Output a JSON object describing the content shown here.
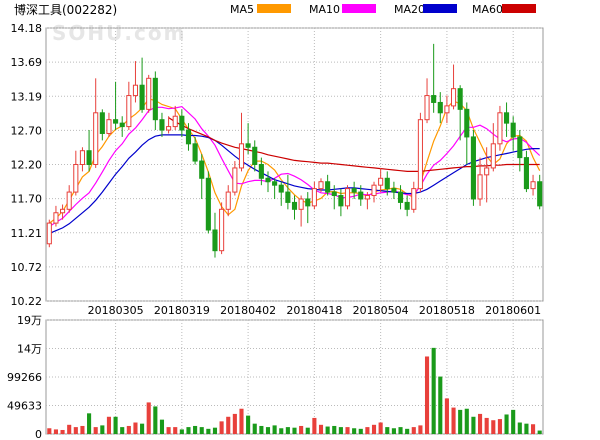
{
  "chart_data": {
    "type": "candlestick",
    "title": "博深工具(002282)",
    "watermark": "SOHU.com",
    "legend": [
      {
        "name": "MA5",
        "color": "#ff9900"
      },
      {
        "name": "MA10",
        "color": "#ff00ff"
      },
      {
        "name": "MA20",
        "color": "#0000cc"
      },
      {
        "name": "MA60",
        "color": "#cc0000"
      }
    ],
    "colors": {
      "up": "#e8403b",
      "down": "#1a9a1a",
      "grid": "#bbbbbb"
    },
    "price_axis": {
      "ticks": [
        "14.18",
        "13.69",
        "13.19",
        "12.70",
        "12.20",
        "11.70",
        "11.21",
        "10.72",
        "10.22"
      ],
      "ylim": [
        10.22,
        14.18
      ]
    },
    "volume_axis": {
      "ticks": [
        "19万",
        "14万",
        "99266",
        "49633",
        "0"
      ],
      "ylim": [
        0,
        198532
      ]
    },
    "date_labels": [
      {
        "label": "20180305",
        "index": 10
      },
      {
        "label": "20180319",
        "index": 20
      },
      {
        "label": "20180402",
        "index": 30
      },
      {
        "label": "20180418",
        "index": 40
      },
      {
        "label": "20180504",
        "index": 50
      },
      {
        "label": "20180518",
        "index": 60
      },
      {
        "label": "20180601",
        "index": 70
      }
    ],
    "candles": [
      [
        11.05,
        11.35,
        11.4,
        11.0
      ],
      [
        11.35,
        11.5,
        11.6,
        11.3
      ],
      [
        11.5,
        11.55,
        11.62,
        11.4
      ],
      [
        11.55,
        11.8,
        11.9,
        11.5
      ],
      [
        11.8,
        12.2,
        12.4,
        11.75
      ],
      [
        12.2,
        12.4,
        12.45,
        12.1
      ],
      [
        12.4,
        12.2,
        12.7,
        12.1
      ],
      [
        12.2,
        12.95,
        13.45,
        12.15
      ],
      [
        12.95,
        12.65,
        13.0,
        12.55
      ],
      [
        12.65,
        12.85,
        12.95,
        12.6
      ],
      [
        12.85,
        12.8,
        13.4,
        12.7
      ],
      [
        12.8,
        12.75,
        12.9,
        12.6
      ],
      [
        12.75,
        13.2,
        13.4,
        12.7
      ],
      [
        13.2,
        13.35,
        13.7,
        13.1
      ],
      [
        13.35,
        13.0,
        13.75,
        12.95
      ],
      [
        13.0,
        13.45,
        13.5,
        12.95
      ],
      [
        13.45,
        12.85,
        13.55,
        12.7
      ],
      [
        12.85,
        12.7,
        12.95,
        12.6
      ],
      [
        12.7,
        12.75,
        12.9,
        12.65
      ],
      [
        12.75,
        12.9,
        13.05,
        12.7
      ],
      [
        12.9,
        12.7,
        13.0,
        12.6
      ],
      [
        12.7,
        12.5,
        12.8,
        12.4
      ],
      [
        12.5,
        12.25,
        12.6,
        12.2
      ],
      [
        12.25,
        12.0,
        12.35,
        11.7
      ],
      [
        12.0,
        11.25,
        12.1,
        11.2
      ],
      [
        11.25,
        10.95,
        11.5,
        10.85
      ],
      [
        10.95,
        11.55,
        11.65,
        10.9
      ],
      [
        11.55,
        11.8,
        11.9,
        11.45
      ],
      [
        11.8,
        12.15,
        12.25,
        11.75
      ],
      [
        12.15,
        12.5,
        12.95,
        12.1
      ],
      [
        12.5,
        12.45,
        12.8,
        12.35
      ],
      [
        12.45,
        12.2,
        12.55,
        12.1
      ],
      [
        12.2,
        12.0,
        12.3,
        11.9
      ],
      [
        12.0,
        11.95,
        12.1,
        11.8
      ],
      [
        11.95,
        11.9,
        12.0,
        11.7
      ],
      [
        11.9,
        11.8,
        11.95,
        11.6
      ],
      [
        11.8,
        11.65,
        12.05,
        11.55
      ],
      [
        11.65,
        11.55,
        11.75,
        11.4
      ],
      [
        11.55,
        11.7,
        11.75,
        11.3
      ],
      [
        11.7,
        11.6,
        11.8,
        11.35
      ],
      [
        11.6,
        11.85,
        11.95,
        11.55
      ],
      [
        11.85,
        11.95,
        12.0,
        11.8
      ],
      [
        11.95,
        11.8,
        12.05,
        11.75
      ],
      [
        11.8,
        11.75,
        11.9,
        11.55
      ],
      [
        11.75,
        11.6,
        11.85,
        11.45
      ],
      [
        11.6,
        11.85,
        11.9,
        11.55
      ],
      [
        11.85,
        11.8,
        11.95,
        11.7
      ],
      [
        11.8,
        11.7,
        11.9,
        11.6
      ],
      [
        11.7,
        11.75,
        11.8,
        11.55
      ],
      [
        11.75,
        11.9,
        11.95,
        11.65
      ],
      [
        11.9,
        12.0,
        12.15,
        11.8
      ],
      [
        12.0,
        11.85,
        12.1,
        11.75
      ],
      [
        11.85,
        11.8,
        11.95,
        11.7
      ],
      [
        11.8,
        11.65,
        11.9,
        11.55
      ],
      [
        11.65,
        11.55,
        11.75,
        11.45
      ],
      [
        11.55,
        11.85,
        11.95,
        11.5
      ],
      [
        11.85,
        12.85,
        12.95,
        11.8
      ],
      [
        12.85,
        13.2,
        13.45,
        12.8
      ],
      [
        13.2,
        13.1,
        13.95,
        12.95
      ],
      [
        13.1,
        12.95,
        13.25,
        12.8
      ],
      [
        12.95,
        13.05,
        13.2,
        12.8
      ],
      [
        13.05,
        13.3,
        13.65,
        13.0
      ],
      [
        13.3,
        13.0,
        13.35,
        12.55
      ],
      [
        13.0,
        12.6,
        13.1,
        12.2
      ],
      [
        12.6,
        11.7,
        12.7,
        11.6
      ],
      [
        11.7,
        12.05,
        12.3,
        11.6
      ],
      [
        12.05,
        12.15,
        12.45,
        11.65
      ],
      [
        12.15,
        12.5,
        12.8,
        12.1
      ],
      [
        12.5,
        12.95,
        13.05,
        12.4
      ],
      [
        12.95,
        12.8,
        13.1,
        12.6
      ],
      [
        12.8,
        12.6,
        12.9,
        12.4
      ],
      [
        12.6,
        12.3,
        12.7,
        12.1
      ],
      [
        12.3,
        11.85,
        12.4,
        11.8
      ],
      [
        11.85,
        11.95,
        12.05,
        11.75
      ],
      [
        11.95,
        11.6,
        12.05,
        11.55
      ]
    ],
    "ma5": [
      11.35,
      11.42,
      11.52,
      11.68,
      11.85,
      12.02,
      12.1,
      12.34,
      12.46,
      12.61,
      12.71,
      12.76,
      12.86,
      12.93,
      13.02,
      13.15,
      13.13,
      13.07,
      13.04,
      13.01,
      12.86,
      12.71,
      12.58,
      12.35,
      12.09,
      11.79,
      11.59,
      11.47,
      11.55,
      11.89,
      12.11,
      12.25,
      12.25,
      12.2,
      12.12,
      11.98,
      11.86,
      11.76,
      11.68,
      11.64,
      11.67,
      11.71,
      11.8,
      11.81,
      11.78,
      11.79,
      11.79,
      11.78,
      11.74,
      11.8,
      11.83,
      11.84,
      11.86,
      11.84,
      11.77,
      11.72,
      11.93,
      12.24,
      12.54,
      12.76,
      13.02,
      13.12,
      13.08,
      12.98,
      12.72,
      12.52,
      12.32,
      12.2,
      12.28,
      12.5,
      12.61,
      12.62,
      12.54,
      12.3,
      12.11
    ],
    "ma10": [
      11.3,
      11.36,
      11.42,
      11.52,
      11.62,
      11.71,
      11.79,
      11.93,
      12.09,
      12.26,
      12.4,
      12.5,
      12.64,
      12.73,
      12.85,
      12.98,
      13.03,
      13.03,
      13.01,
      13.02,
      13.04,
      12.95,
      12.86,
      12.72,
      12.61,
      12.48,
      12.29,
      12.11,
      11.93,
      11.92,
      11.95,
      11.97,
      11.97,
      11.95,
      12.0,
      12.06,
      12.07,
      12.03,
      11.98,
      11.91,
      11.83,
      11.79,
      11.78,
      11.76,
      11.72,
      11.72,
      11.74,
      11.77,
      11.76,
      11.77,
      11.79,
      11.8,
      11.82,
      11.79,
      11.76,
      11.76,
      11.89,
      12.06,
      12.19,
      12.26,
      12.36,
      12.47,
      12.61,
      12.74,
      12.74,
      12.77,
      12.72,
      12.64,
      12.57,
      12.53,
      12.57,
      12.58,
      12.52,
      12.42,
      12.33
    ],
    "ma20": [
      11.2,
      11.24,
      11.28,
      11.34,
      11.42,
      11.5,
      11.58,
      11.68,
      11.8,
      11.93,
      12.06,
      12.17,
      12.29,
      12.38,
      12.48,
      12.56,
      12.61,
      12.63,
      12.63,
      12.63,
      12.63,
      12.62,
      12.62,
      12.61,
      12.59,
      12.55,
      12.48,
      12.4,
      12.32,
      12.25,
      12.19,
      12.13,
      12.08,
      12.03,
      11.98,
      11.95,
      11.92,
      11.89,
      11.87,
      11.85,
      11.84,
      11.83,
      11.83,
      11.84,
      11.85,
      11.86,
      11.86,
      11.85,
      11.84,
      11.83,
      11.82,
      11.81,
      11.8,
      11.79,
      11.78,
      11.78,
      11.8,
      11.84,
      11.9,
      11.96,
      12.02,
      12.08,
      12.14,
      12.2,
      12.24,
      12.27,
      12.3,
      12.32,
      12.34,
      12.36,
      12.38,
      12.4,
      12.42,
      12.43,
      12.43
    ],
    "ma60": [
      null,
      null,
      null,
      null,
      null,
      null,
      null,
      null,
      null,
      null,
      null,
      null,
      null,
      null,
      null,
      null,
      null,
      null,
      12.88,
      12.82,
      12.77,
      12.72,
      12.68,
      12.64,
      12.6,
      12.55,
      12.51,
      12.48,
      12.45,
      12.43,
      12.41,
      12.39,
      12.37,
      12.34,
      12.32,
      12.3,
      12.28,
      12.26,
      12.25,
      12.24,
      12.23,
      12.22,
      12.22,
      12.21,
      12.2,
      12.19,
      12.18,
      12.17,
      12.16,
      12.15,
      12.14,
      12.13,
      12.12,
      12.11,
      12.1,
      12.1,
      12.1,
      12.11,
      12.12,
      12.13,
      12.14,
      12.15,
      12.16,
      12.17,
      12.17,
      12.18,
      12.18,
      12.19,
      12.19,
      12.2,
      12.2,
      12.2,
      12.2,
      12.2,
      12.2
    ],
    "volume": [
      10000,
      8000,
      7000,
      16000,
      12000,
      14000,
      36000,
      12000,
      15000,
      30000,
      30000,
      12000,
      14000,
      20000,
      18000,
      55000,
      48000,
      25000,
      12000,
      12000,
      8000,
      12000,
      14000,
      12000,
      9000,
      11000,
      22000,
      30000,
      35000,
      44000,
      32000,
      18000,
      14000,
      12000,
      15000,
      10000,
      12000,
      11000,
      14000,
      11000,
      28000,
      16000,
      13000,
      14000,
      12000,
      12000,
      10000,
      9000,
      12000,
      16000,
      20000,
      12000,
      10000,
      12000,
      9000,
      12000,
      15000,
      135000,
      150000,
      100000,
      62000,
      46000,
      42000,
      44000,
      30000,
      35000,
      28000,
      24000,
      26000,
      34000,
      42000,
      20000,
      18000,
      17000,
      6000
    ]
  }
}
